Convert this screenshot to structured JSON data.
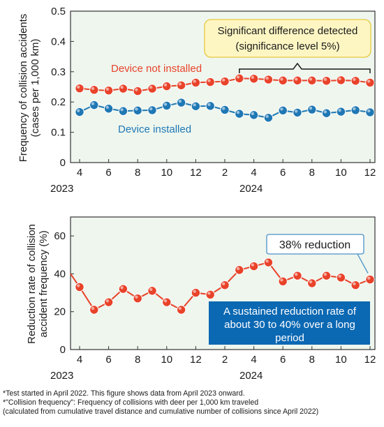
{
  "chart_data": [
    {
      "type": "line",
      "ylabel": "Frequency of collision accidents (cases per 1,000 km)",
      "ylabel_lines": [
        "Frequency of collision accidents",
        "(cases per 1,000 km)"
      ],
      "ylim": [
        0,
        0.5
      ],
      "yticks": [
        "0",
        "0.1",
        "0.2",
        "0.3",
        "0.4",
        "0.5"
      ],
      "xtick_labels": [
        "4",
        "6",
        "8",
        "10",
        "12",
        "2",
        "4",
        "6",
        "8",
        "10",
        "12"
      ],
      "year_labels": [
        "2023",
        "2024"
      ],
      "x": [
        "2023-04",
        "2023-05",
        "2023-06",
        "2023-07",
        "2023-08",
        "2023-09",
        "2023-10",
        "2023-11",
        "2023-12",
        "2024-01",
        "2024-02",
        "2024-03",
        "2024-04",
        "2024-05",
        "2024-06",
        "2024-07",
        "2024-08",
        "2024-09",
        "2024-10",
        "2024-11",
        "2024-12"
      ],
      "grid": false,
      "series": [
        {
          "name": "Device not installed",
          "color": "#e8432a",
          "values": [
            0.245,
            0.24,
            0.238,
            0.244,
            0.236,
            0.244,
            0.252,
            0.255,
            0.264,
            0.266,
            0.268,
            0.278,
            0.277,
            0.274,
            0.271,
            0.271,
            0.271,
            0.27,
            0.272,
            0.27,
            0.264
          ]
        },
        {
          "name": "Device installed",
          "color": "#1f78b4",
          "values": [
            0.167,
            0.19,
            0.178,
            0.17,
            0.172,
            0.173,
            0.188,
            0.198,
            0.186,
            0.187,
            0.174,
            0.161,
            0.157,
            0.148,
            0.172,
            0.165,
            0.175,
            0.163,
            0.168,
            0.173,
            0.166
          ]
        }
      ],
      "annotation": {
        "lines": [
          "Significant difference detected",
          "(significance level 5%)"
        ],
        "fill": "#fdf6c3",
        "border": "#e7c93b"
      }
    },
    {
      "type": "line",
      "ylabel": "Reduction rate of collision accident frequency (%)",
      "ylabel_lines": [
        "Reduction rate of collision",
        "accident frequency (%)"
      ],
      "ylim": [
        0,
        70
      ],
      "yticks": [
        "0",
        "20",
        "40",
        "60"
      ],
      "xtick_labels": [
        "4",
        "6",
        "8",
        "10",
        "12",
        "2",
        "4",
        "6",
        "8",
        "10",
        "12"
      ],
      "year_labels": [
        "2023",
        "2024"
      ],
      "x": [
        "2023-04",
        "2023-05",
        "2023-06",
        "2023-07",
        "2023-08",
        "2023-09",
        "2023-10",
        "2023-11",
        "2023-12",
        "2024-01",
        "2024-02",
        "2024-03",
        "2024-04",
        "2024-05",
        "2024-06",
        "2024-07",
        "2024-08",
        "2024-09",
        "2024-10",
        "2024-11",
        "2024-12"
      ],
      "grid": false,
      "series": [
        {
          "name": "Reduction rate",
          "color": "#e8432a",
          "values": [
            33,
            21,
            25,
            32,
            27,
            31,
            25,
            21,
            30,
            29,
            34,
            42,
            44,
            46,
            36,
            39,
            35,
            39,
            38,
            34,
            37
          ]
        }
      ],
      "callout_reduction": "38% reduction",
      "callout_sustained_lines": [
        "A sustained reduction rate of",
        "about 30 to 40% over a long",
        "period"
      ],
      "callout_sustained_fill": "#0b68b3"
    }
  ],
  "footnotes": [
    "*Test started in April 2022. This figure shows data from April 2023 onward.",
    "*\"Collision frequency\": Frequency of collisions with deer per 1,000 km traveled",
    " (calculated from cumulative travel distance and cumulative number of collisions since April 2022)"
  ]
}
